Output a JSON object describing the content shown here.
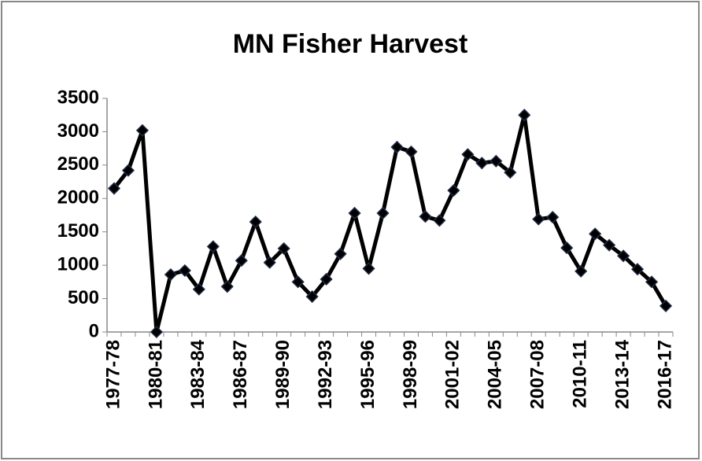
{
  "chart_data": {
    "type": "line",
    "title": "MN Fisher Harvest",
    "categories": [
      "1977-78",
      null,
      null,
      "1980-81",
      null,
      null,
      "1983-84",
      null,
      null,
      "1986-87",
      null,
      null,
      "1989-90",
      null,
      null,
      "1992-93",
      null,
      null,
      "1995-96",
      null,
      null,
      "1998-99",
      null,
      null,
      "2001-02",
      null,
      null,
      "2004-05",
      null,
      null,
      "2007-08",
      null,
      null,
      "2010-11",
      null,
      null,
      "2013-14",
      null,
      null,
      "2016-17"
    ],
    "series": [
      {
        "name": "Harvest",
        "color": "#000000",
        "marker_color": "#1f2a44",
        "values": [
          2150,
          2420,
          3020,
          0,
          860,
          920,
          640,
          1280,
          680,
          1070,
          1650,
          1040,
          1250,
          750,
          530,
          790,
          1170,
          1780,
          950,
          1780,
          2770,
          2700,
          1730,
          1670,
          2120,
          2660,
          2530,
          2560,
          2390,
          3250,
          1690,
          1720,
          1260,
          910,
          1470,
          1300,
          1140,
          940,
          750,
          390
        ]
      }
    ],
    "ylim": [
      0,
      3500
    ],
    "yticks": [
      0,
      500,
      1000,
      1500,
      2000,
      2500,
      3000,
      3500
    ],
    "grid": false,
    "legend": false
  }
}
